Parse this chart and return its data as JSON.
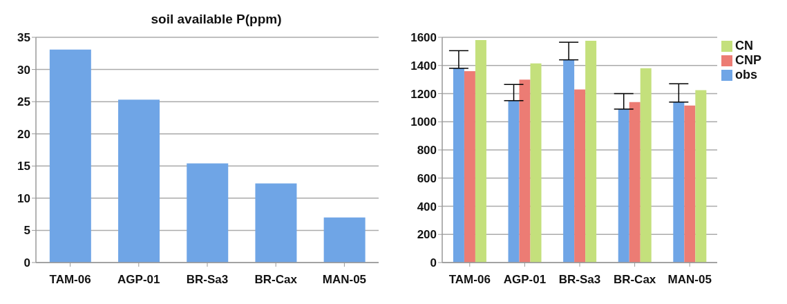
{
  "chart_data": [
    {
      "type": "bar",
      "title": "soil available P(ppm)",
      "categories": [
        "TAM-06",
        "AGP-01",
        "BR-Sa3",
        "BR-Cax",
        "MAN-05"
      ],
      "values": [
        33.1,
        25.3,
        15.4,
        12.3,
        7.0
      ],
      "color": "#6fa5e6",
      "ylim": [
        0,
        35
      ],
      "yticks": [
        0,
        5,
        10,
        15,
        20,
        25,
        30,
        35
      ],
      "grid": "y",
      "legend": false
    },
    {
      "type": "bar",
      "categories": [
        "TAM-06",
        "AGP-01",
        "BR-Sa3",
        "BR-Cax",
        "MAN-05"
      ],
      "series": [
        {
          "name": "obs",
          "color": "#6fa5e6",
          "values": [
            1380,
            1150,
            1440,
            1090,
            1140
          ],
          "errors": [
            [
              1380,
              1505
            ],
            [
              1150,
              1265
            ],
            [
              1440,
              1565
            ],
            [
              1090,
              1200
            ],
            [
              1140,
              1270
            ]
          ]
        },
        {
          "name": "CNP",
          "color": "#ec7c74",
          "values": [
            1360,
            1300,
            1230,
            1140,
            1115
          ]
        },
        {
          "name": "CN",
          "color": "#c4e07c",
          "values": [
            1580,
            1415,
            1575,
            1380,
            1225
          ]
        }
      ],
      "ylim": [
        0,
        1600
      ],
      "yticks": [
        0,
        200,
        400,
        600,
        800,
        1000,
        1200,
        1400,
        1600
      ],
      "grid": "y",
      "legend": "top right"
    }
  ]
}
